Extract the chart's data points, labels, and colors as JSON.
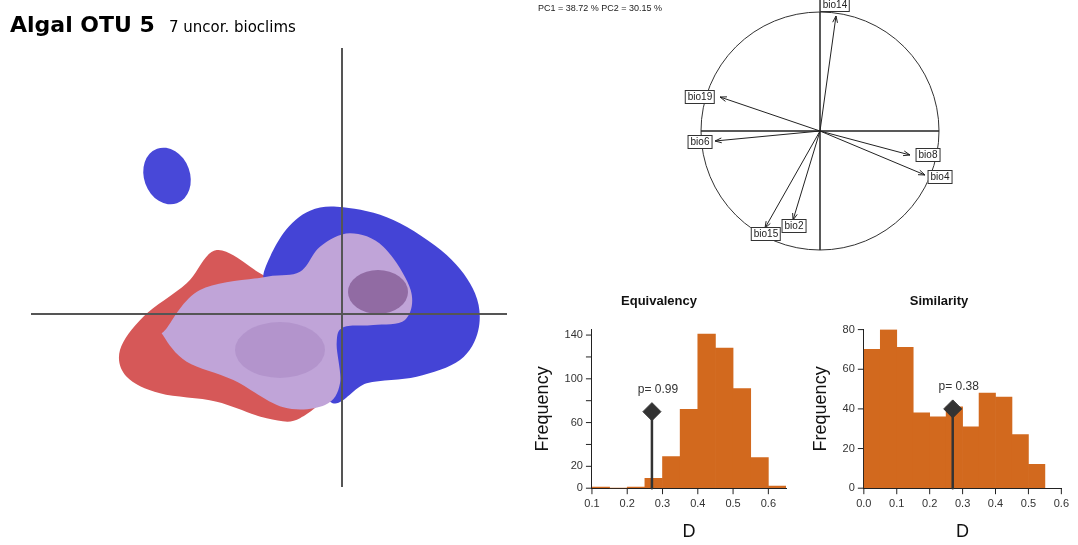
{
  "chart_data": [
    {
      "type": "other",
      "title": "Algal OTU 5",
      "subtitle": "7 uncor. bioclims"
    },
    {
      "type": "other",
      "annotations": [
        "PC1 =  38.72 % PC2 =  30.15 %",
        "bio14",
        "bio19",
        "bio6",
        "bio8",
        "bio4",
        "bio15",
        "bio2"
      ]
    },
    {
      "type": "histogram",
      "title": "Equivalency",
      "xlabel": "D",
      "ylabel": "Frequency",
      "bins": [
        0.1,
        0.15,
        0.2,
        0.25,
        0.3,
        0.35,
        0.4,
        0.45,
        0.5,
        0.55,
        0.6,
        0.65
      ],
      "values": [
        1,
        0,
        1,
        9,
        29,
        72,
        141,
        128,
        91,
        28,
        2
      ],
      "color": "#d2691e",
      "xlim": [
        0.1,
        0.65
      ],
      "xticks": [
        0.1,
        0.2,
        0.3,
        0.4,
        0.5,
        0.6
      ],
      "ylim": [
        0,
        145
      ],
      "yticks": [
        0,
        {
          "value": 20,
          "label": "20"
        },
        {
          "value": 40,
          "label": null
        },
        60,
        {
          "value": 80,
          "label": null
        },
        100,
        {
          "value": 120,
          "label": null
        },
        140
      ],
      "grid": false,
      "series": [
        {
          "type": "lollipop",
          "x": [
            0.27
          ],
          "values": [
            70
          ],
          "color": "#333333",
          "marker": "diamond"
        }
      ],
      "annotations": [
        "p= 0.99"
      ]
    },
    {
      "type": "histogram",
      "title": "Similarity",
      "xlabel": "D",
      "ylabel": "Frequency",
      "bins": [
        0,
        0.05,
        0.1,
        0.15,
        0.2,
        0.25,
        0.3,
        0.35,
        0.4,
        0.45,
        0.5,
        0.55
      ],
      "values": [
        70,
        80,
        71,
        38,
        36,
        41,
        31,
        48,
        46,
        27,
        12
      ],
      "color": "#d2691e",
      "xlim": [
        0,
        0.6
      ],
      "xticks": [
        {
          "value": 0,
          "label": "0.0"
        },
        0.1,
        0.2,
        0.3,
        0.4,
        0.5,
        0.6
      ],
      "ylim": [
        0,
        80
      ],
      "yticks": [
        0,
        20,
        40,
        60,
        80
      ],
      "grid": false,
      "series": [
        {
          "type": "lollipop",
          "x": [
            0.27
          ],
          "values": [
            40
          ],
          "color": "#333333",
          "marker": "diamond"
        }
      ],
      "annotations": [
        "p= 0.38"
      ]
    }
  ]
}
